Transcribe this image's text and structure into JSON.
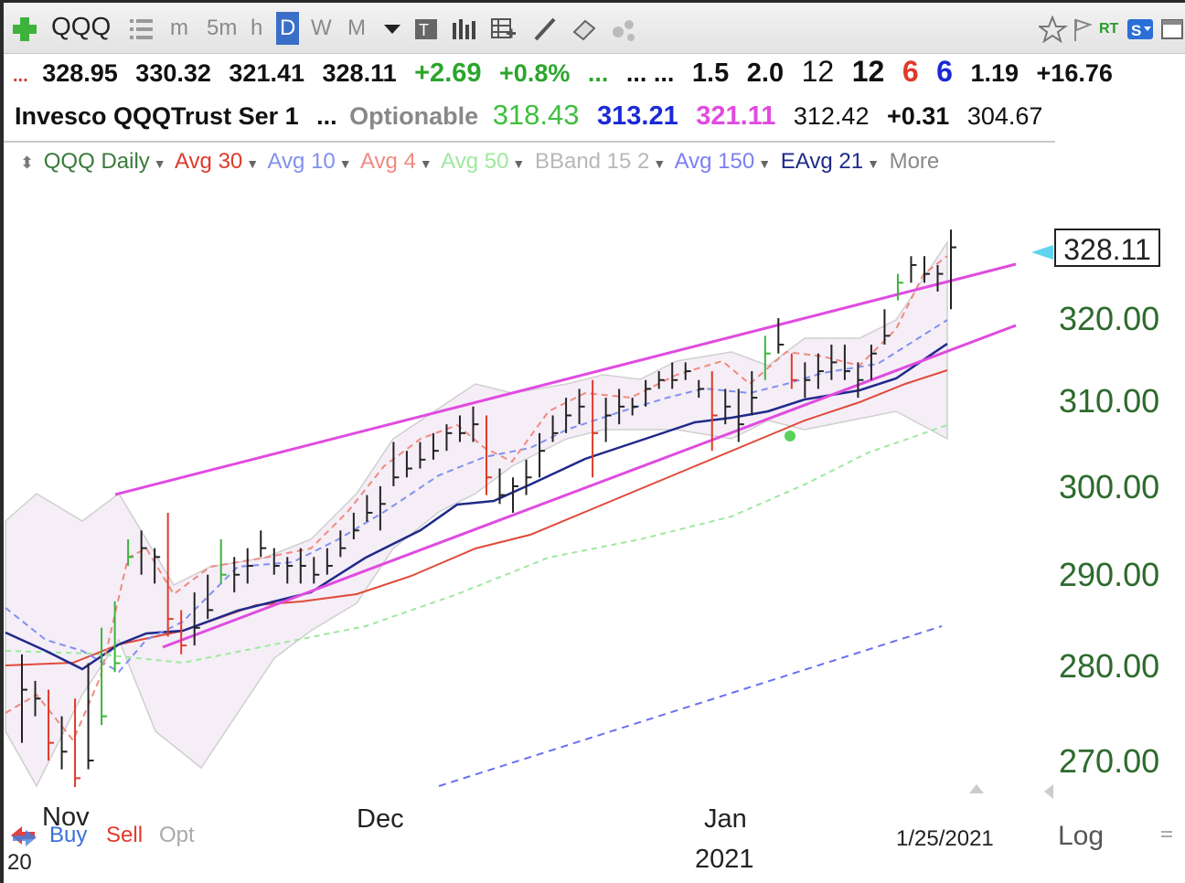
{
  "toolbar": {
    "symbol": "QQQ",
    "intervals": [
      "m",
      "5m",
      "h",
      "D",
      "W",
      "M"
    ],
    "active_interval": "D",
    "rt_label": "RT"
  },
  "quote": {
    "open": "328.95",
    "high": "330.32",
    "low": "321.41",
    "close": "328.11",
    "change": "+2.69",
    "change_pct": "+0.8%",
    "dots1": "...",
    "dots2": "... ...",
    "v1": "1.5",
    "v2": "2.0",
    "v3": "12",
    "v4": "12",
    "v5": "6",
    "v6": "6",
    "v7": "1.19",
    "v8": "+16.76"
  },
  "info": {
    "name": "Invesco QQQTrust Ser 1",
    "dots": "...",
    "optionable": "Optionable",
    "p1": "318.43",
    "p2": "313.21",
    "p3": "321.11",
    "p4": "312.42",
    "p5": "+0.31",
    "p6": "304.67"
  },
  "legend": {
    "items": [
      {
        "label": "QQQ Daily",
        "color": "#3a7a3a"
      },
      {
        "label": "Avg 30",
        "color": "#e03a2a"
      },
      {
        "label": "Avg 10",
        "color": "#8090f0"
      },
      {
        "label": "Avg 4",
        "color": "#f08a80"
      },
      {
        "label": "Avg 50",
        "color": "#9ee89e"
      },
      {
        "label": "BBand 15 2",
        "color": "#b8b8b8"
      },
      {
        "label": "Avg 150",
        "color": "#7a80f0"
      },
      {
        "label": "EAvg 21",
        "color": "#1f2a8a"
      }
    ],
    "more": "More"
  },
  "price_marker": "328.11",
  "bottom": {
    "buy": "Buy",
    "sell": "Sell",
    "opt": "Opt",
    "date": "1/25/2021",
    "log": "Log",
    "year_left": "20"
  },
  "chart_data": {
    "type": "ohlc",
    "y_ticks": [
      "320.00",
      "310.00",
      "300.00",
      "290.00",
      "280.00",
      "270.00"
    ],
    "x_labels": [
      "Nov",
      "Dec",
      "Jan"
    ],
    "year_label": "2021",
    "ylim": [
      266,
      332
    ],
    "bars": [
      [
        282,
        278,
        272
      ],
      [
        279,
        277,
        275
      ],
      [
        278,
        272,
        270
      ],
      [
        275,
        271,
        269
      ],
      [
        277,
        268,
        267
      ],
      [
        281,
        270,
        269
      ],
      [
        285,
        275,
        274
      ],
      [
        288,
        281,
        280
      ],
      [
        295,
        293,
        292
      ],
      [
        296,
        294,
        291
      ],
      [
        294,
        293,
        290
      ],
      [
        298,
        286,
        284
      ],
      [
        287,
        283,
        282
      ],
      [
        289,
        285,
        283
      ],
      [
        291,
        287,
        286
      ],
      [
        295,
        291,
        290
      ],
      [
        293,
        291,
        289
      ],
      [
        294,
        292,
        290
      ],
      [
        296,
        294,
        293
      ],
      [
        294,
        292,
        291
      ],
      [
        293,
        292,
        290
      ],
      [
        294,
        292,
        290
      ],
      [
        293,
        291,
        290
      ],
      [
        294,
        292,
        291
      ],
      [
        296,
        294,
        293
      ],
      [
        298,
        296,
        295
      ],
      [
        300,
        298,
        297
      ],
      [
        301,
        299,
        296
      ],
      [
        306,
        302,
        301
      ],
      [
        305,
        303,
        302
      ],
      [
        306,
        304,
        303
      ],
      [
        307,
        305,
        304
      ],
      [
        308,
        307,
        305
      ],
      [
        309,
        307,
        306
      ],
      [
        310,
        308,
        306
      ],
      [
        309,
        302,
        300
      ],
      [
        303,
        300,
        299
      ],
      [
        302,
        301,
        298
      ],
      [
        304,
        302,
        300
      ],
      [
        307,
        305,
        302
      ],
      [
        309,
        307,
        306
      ],
      [
        311,
        309,
        307
      ],
      [
        312,
        310,
        308
      ],
      [
        313,
        307,
        302
      ],
      [
        311,
        309,
        306
      ],
      [
        312,
        310,
        308
      ],
      [
        311,
        310,
        309
      ],
      [
        313,
        312,
        310
      ],
      [
        314,
        313,
        312
      ],
      [
        315,
        313,
        312
      ],
      [
        315,
        314,
        313
      ],
      [
        313,
        312,
        311
      ],
      [
        314,
        309,
        305
      ],
      [
        312,
        310,
        308
      ],
      [
        312,
        308,
        306
      ],
      [
        314,
        311,
        309
      ],
      [
        318,
        316,
        313
      ],
      [
        320,
        317,
        316
      ],
      [
        316,
        313,
        312
      ],
      [
        315,
        313,
        311
      ],
      [
        316,
        314,
        312
      ],
      [
        317,
        315,
        313
      ],
      [
        317,
        314,
        313
      ],
      [
        315,
        313,
        311
      ],
      [
        317,
        316,
        313
      ],
      [
        321,
        318,
        317
      ],
      [
        325,
        324,
        322
      ],
      [
        327,
        326,
        324
      ],
      [
        327,
        325,
        324
      ],
      [
        326,
        325,
        323
      ],
      [
        330,
        328,
        321
      ]
    ]
  }
}
